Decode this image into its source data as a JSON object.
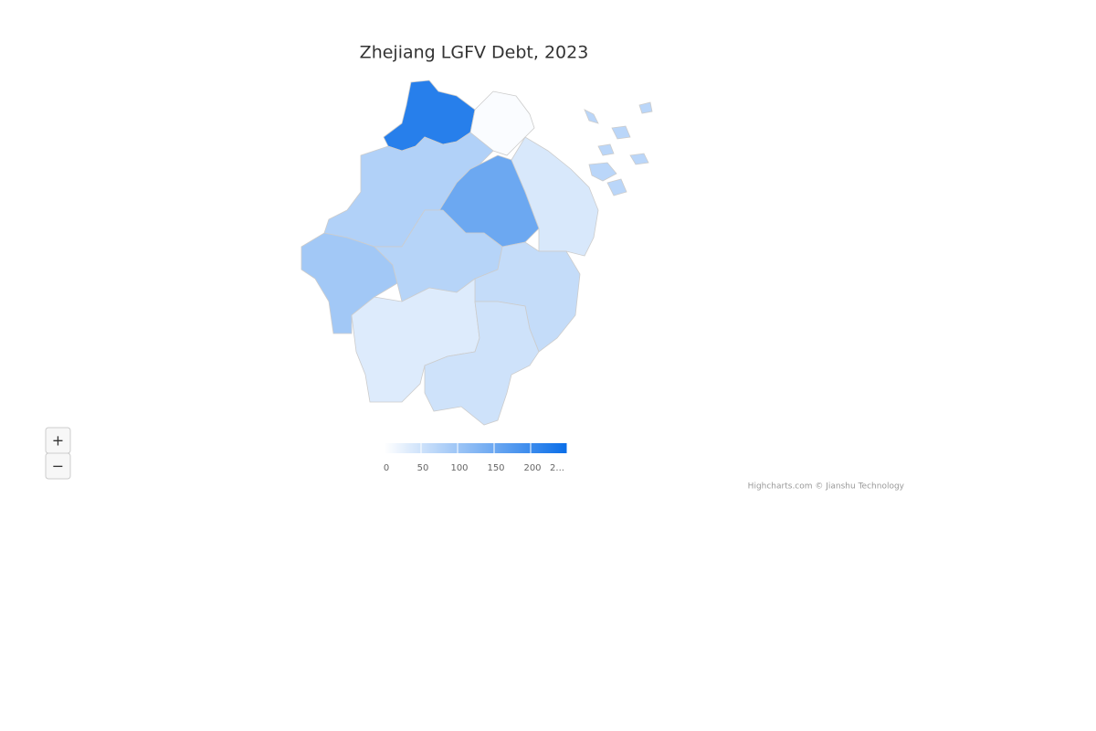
{
  "chart_data": {
    "type": "map",
    "title": "Zhejiang LGFV Debt, 2023",
    "values": [
      220,
      5,
      80,
      150,
      40,
      95,
      75,
      60,
      35,
      50,
      70
    ],
    "color_axis": {
      "min_color": "#ffffff",
      "max_color": "#0a6ee8",
      "lim": [
        0,
        250
      ],
      "ticks": [
        0,
        50,
        100,
        150,
        200,
        {
          "value": 250,
          "label": "2..."
        }
      ]
    },
    "zoom_in": "+",
    "zoom_out": "−",
    "credits": "Highcharts.com © Jianshu Technology"
  }
}
